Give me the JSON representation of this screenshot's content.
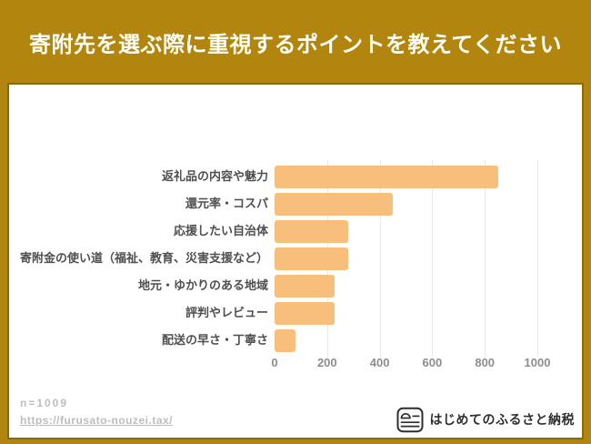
{
  "header": {
    "title": "寄附先を選ぶ際に重視するポイントを教えてください"
  },
  "chart_data": {
    "type": "bar",
    "orientation": "horizontal",
    "title": "寄附先を選ぶ際に重視するポイントを教えてください",
    "categories": [
      "返礼品の内容や魅力",
      "還元率・コスパ",
      "応援したい自治体",
      "寄附金の使い道（福祉、教育、災害支援など）",
      "地元・ゆかりのある地域",
      "評判やレビュー",
      "配送の早さ・丁寧さ"
    ],
    "values": [
      850,
      450,
      280,
      280,
      230,
      230,
      80
    ],
    "xlabel": "",
    "ylabel": "",
    "xlim": [
      0,
      1000
    ],
    "xticks": [
      0,
      200,
      400,
      600,
      800,
      1000
    ],
    "grid": true,
    "legend": false,
    "bar_color": "#F8BE7C"
  },
  "footer": {
    "sample_size": "n=1009",
    "source_url": "https://furusato-nouzei.tax/",
    "brand": {
      "name": "はじめてのふるさと納税",
      "icon": "furusato-card-icon"
    }
  },
  "colors": {
    "background_gold": "#B2860E",
    "panel_border_gold": "#8A6A06",
    "panel_white": "#FFFFFF",
    "bar_orange": "#F8BE7C",
    "category_label_gray": "#4F4F4F",
    "tick_gray": "#8D8D8D",
    "footer_gray": "#BDBDBD",
    "brand_dark": "#2E2E2E",
    "title_white": "#FFFEF6",
    "gridline_gray": "#E8E8E8"
  }
}
